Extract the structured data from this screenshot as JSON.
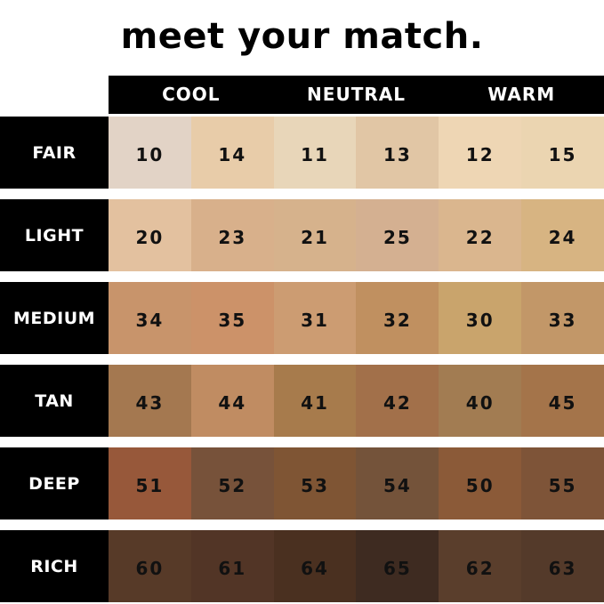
{
  "title": "meet your match.",
  "columns": [
    "COOL",
    "NEUTRAL",
    "WARM"
  ],
  "rows": [
    {
      "label": "FAIR",
      "shades": [
        {
          "code": "10",
          "color": "#e2d3c6"
        },
        {
          "code": "14",
          "color": "#e8cca9"
        },
        {
          "code": "11",
          "color": "#e8d6b9"
        },
        {
          "code": "13",
          "color": "#e1c6a5"
        },
        {
          "code": "12",
          "color": "#eed6b4"
        },
        {
          "code": "15",
          "color": "#ebd5b1"
        }
      ]
    },
    {
      "label": "LIGHT",
      "shades": [
        {
          "code": "20",
          "color": "#e3c19f"
        },
        {
          "code": "23",
          "color": "#d8b08b"
        },
        {
          "code": "21",
          "color": "#d6b28c"
        },
        {
          "code": "25",
          "color": "#d4b091"
        },
        {
          "code": "22",
          "color": "#dab68e"
        },
        {
          "code": "24",
          "color": "#d7b482"
        }
      ]
    },
    {
      "label": "MEDIUM",
      "shades": [
        {
          "code": "34",
          "color": "#c8946b"
        },
        {
          "code": "35",
          "color": "#cc9269"
        },
        {
          "code": "31",
          "color": "#cc9c72"
        },
        {
          "code": "32",
          "color": "#c09060"
        },
        {
          "code": "30",
          "color": "#c9a46c"
        },
        {
          "code": "33",
          "color": "#c29768"
        }
      ]
    },
    {
      "label": "TAN",
      "shades": [
        {
          "code": "43",
          "color": "#a47850"
        },
        {
          "code": "44",
          "color": "#c08c62"
        },
        {
          "code": "41",
          "color": "#a77b4c"
        },
        {
          "code": "42",
          "color": "#a2704a"
        },
        {
          "code": "40",
          "color": "#a27c52"
        },
        {
          "code": "45",
          "color": "#a4744a"
        }
      ]
    },
    {
      "label": "DEEP",
      "shades": [
        {
          "code": "51",
          "color": "#97583a"
        },
        {
          "code": "52",
          "color": "#77523a"
        },
        {
          "code": "53",
          "color": "#7f5534"
        },
        {
          "code": "54",
          "color": "#74533a"
        },
        {
          "code": "50",
          "color": "#8b5a38"
        },
        {
          "code": "55",
          "color": "#7e5438"
        }
      ]
    },
    {
      "label": "RICH",
      "shades": [
        {
          "code": "60",
          "color": "#573a28"
        },
        {
          "code": "61",
          "color": "#523526"
        },
        {
          "code": "64",
          "color": "#4a3020"
        },
        {
          "code": "65",
          "color": "#3e2b21"
        },
        {
          "code": "62",
          "color": "#5a3e2c"
        },
        {
          "code": "63",
          "color": "#543a2a"
        }
      ]
    }
  ]
}
